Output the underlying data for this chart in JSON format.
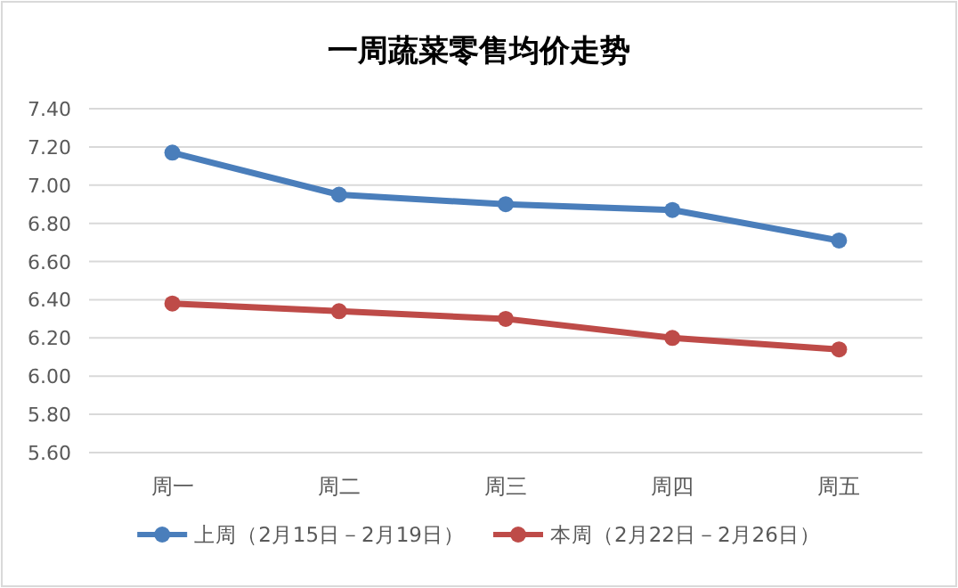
{
  "chart_data": {
    "type": "line",
    "title": "一周蔬菜零售均价走势",
    "categories": [
      "周一",
      "周二",
      "周三",
      "周四",
      "周五"
    ],
    "series": [
      {
        "name": "上周（2月15日－2月19日）",
        "color": "#4a7ebb",
        "values": [
          7.17,
          6.95,
          6.9,
          6.87,
          6.71
        ]
      },
      {
        "name": "本周（2月22日－2月26日）",
        "color": "#be4b48",
        "values": [
          6.38,
          6.34,
          6.3,
          6.2,
          6.14
        ]
      }
    ],
    "ylim": [
      5.6,
      7.4
    ],
    "yticks": [
      {
        "value": 5.6,
        "label": "5.60"
      },
      {
        "value": 5.8,
        "label": "5.80"
      },
      {
        "value": 6.0,
        "label": "6.00"
      },
      {
        "value": 6.2,
        "label": "6.20"
      },
      {
        "value": 6.4,
        "label": "6.40"
      },
      {
        "value": 6.6,
        "label": "6.60"
      },
      {
        "value": 6.8,
        "label": "6.80"
      },
      {
        "value": 7.0,
        "label": "7.00"
      },
      {
        "value": 7.2,
        "label": "7.20"
      },
      {
        "value": 7.4,
        "label": "7.40"
      }
    ],
    "grid": "y",
    "legend": "bottom",
    "marker": "circle",
    "line_style": "solid"
  }
}
